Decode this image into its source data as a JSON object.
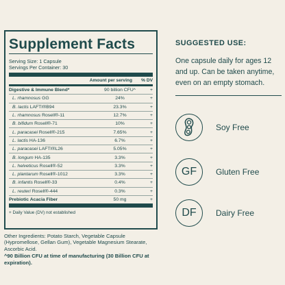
{
  "facts": {
    "title": "Supplement Facts",
    "serving_size": "Serving Size: 1 Capsule",
    "servings_per_container": "Servings Per Container: 30",
    "col_amount": "Amount per serving",
    "col_dv": "% DV",
    "rows": [
      {
        "name": "Digestive & Immune Blend*",
        "amount": "90 billion CFU^",
        "dv": "+"
      },
      {
        "species": "L. rhamnosus",
        "strain": " GG",
        "amount": "24%",
        "dv": "+"
      },
      {
        "species": "B. lactis",
        "strain": " LAFTI®B94",
        "amount": "23.3%",
        "dv": "+"
      },
      {
        "species": "L. rhamnosus",
        "strain": " Rosell®-11",
        "amount": "12.7%",
        "dv": "+"
      },
      {
        "species": "B. bifidum",
        "strain": " Rosell®-71",
        "amount": "10%",
        "dv": "+"
      },
      {
        "species": "L. paracasei",
        "strain": " Rosell®-215",
        "amount": "7.65%",
        "dv": "+"
      },
      {
        "species": "L. lactis",
        "strain": " HA-136",
        "amount": "6.7%",
        "dv": "+"
      },
      {
        "species": "L. paracasei",
        "strain": " LAFTI®L26",
        "amount": "5.05%",
        "dv": "+"
      },
      {
        "species": "B. longum",
        "strain": " HA-135",
        "amount": "3.3%",
        "dv": "+"
      },
      {
        "species": "L. helveticus",
        "strain": " Rosell®-52",
        "amount": "3.3%",
        "dv": "+"
      },
      {
        "species": "L. plantarum",
        "strain": " Rosell®-1012",
        "amount": "3.3%",
        "dv": "+"
      },
      {
        "species": "B. infantis",
        "strain": " Rosell®-33",
        "amount": "0.4%",
        "dv": "+"
      },
      {
        "species": "L. reuteri",
        "strain": " Rosell®-444",
        "amount": "0.3%",
        "dv": "+"
      },
      {
        "name": "Prebiotic Acacia Fiber",
        "amount": "50 mg",
        "dv": "+"
      }
    ],
    "dv_footnote": "+ Daily Value (DV) not established"
  },
  "other_ingredients": "Other Ingredients: Potato Starch, Vegetable Capsule (Hypromellose, Gellan Gum), Vegetable Magnesium Stearate, Ascorbic Acid.",
  "cfu_note": "^90 Billion CFU at time of manufacturing (30 Billion CFU at expiration).",
  "suggested": {
    "title": "SUGGESTED USE:",
    "text": "One capsule daily for ages 12 and up. Can be taken anytime, even on an empty stomach."
  },
  "badges": [
    {
      "icon": "soybean-icon",
      "label": "Soy Free"
    },
    {
      "icon_text": "GF",
      "label": "Gluten Free"
    },
    {
      "icon_text": "DF",
      "label": "Dairy Free"
    }
  ],
  "colors": {
    "background": "#f3efe6",
    "ink": "#1f4a4b"
  }
}
